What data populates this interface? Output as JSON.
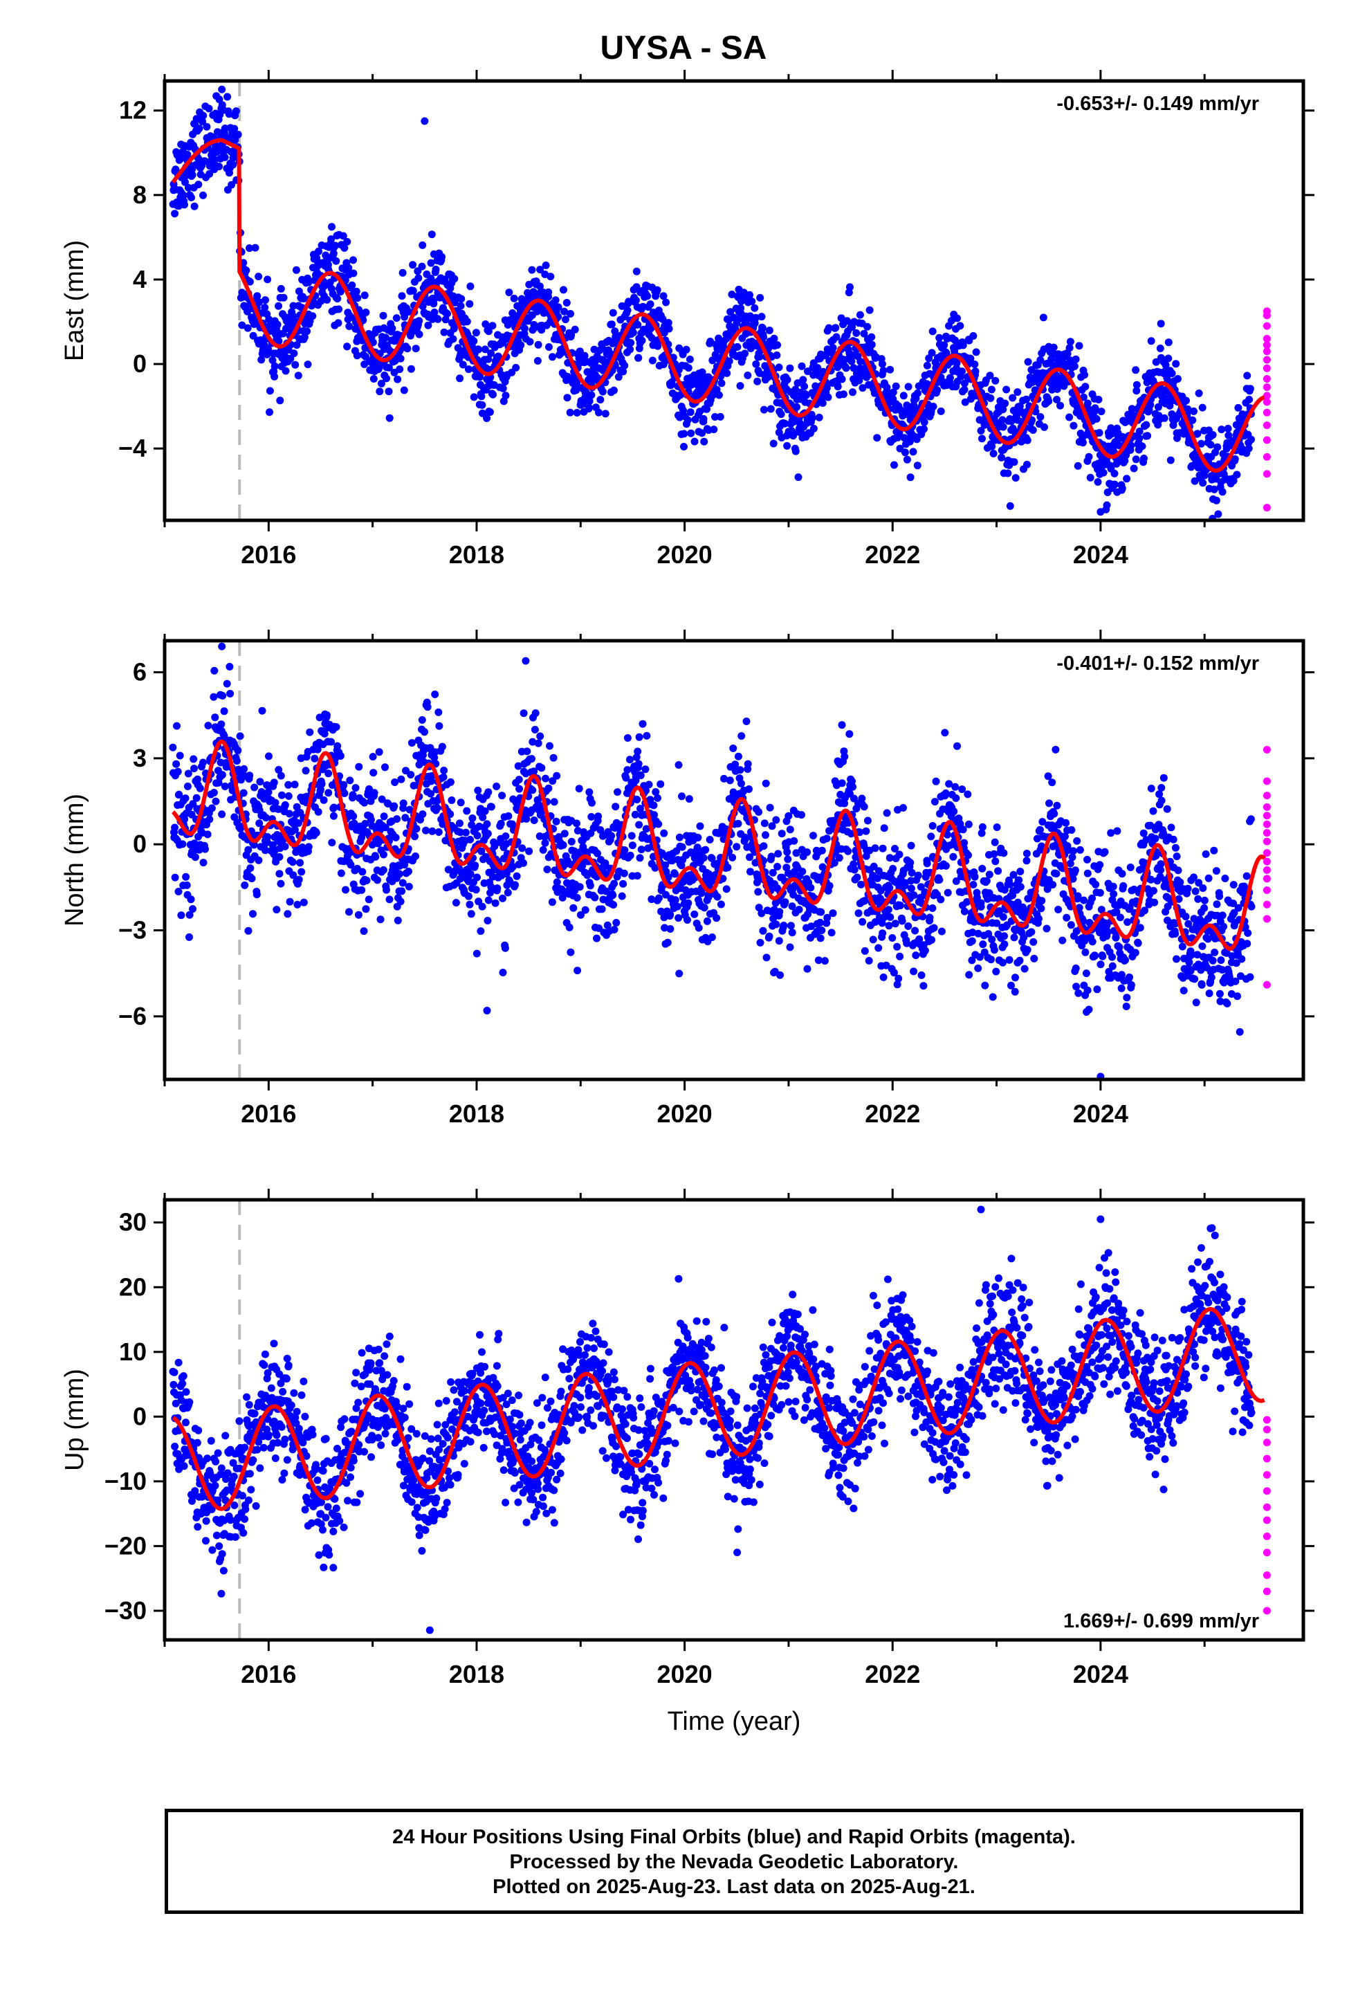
{
  "title": "UYSA - SA",
  "footer": {
    "line1": "24 Hour Positions Using Final Orbits (blue) and Rapid Orbits (magenta).",
    "line2": "Processed by the Nevada Geodetic Laboratory.",
    "line3": "Plotted on 2025-Aug-23. Last data on 2025-Aug-21."
  },
  "colors": {
    "final_orbits": "#0000ff",
    "rapid_orbits": "#ff00ff",
    "model_fit": "#ff0000",
    "event_line": "#bbbbbb"
  },
  "chart_data": [
    {
      "type": "scatter",
      "ylabel": "East (mm)",
      "xlabel": "",
      "xlim": [
        2015.0,
        2025.95
      ],
      "ylim": [
        -7.4,
        13.4
      ],
      "xticks": [
        2016,
        2018,
        2020,
        2022,
        2024
      ],
      "yticks": [
        12,
        8,
        4,
        0,
        -4
      ],
      "rate": "-0.653+/- 0.149 mm/yr",
      "rate_position": "top-right",
      "event_line_x": 2015.72,
      "fit": {
        "name": "model",
        "pre_event": {
          "x_start": 2015.08,
          "x_end": 2015.72,
          "start": 8.6,
          "end": 10.2,
          "peak": 10.6,
          "peak_x": 2015.55
        },
        "offset_after_event": -6.3,
        "linear_rate": -0.653,
        "annual_amplitude": 1.9,
        "annual_peak_phase": 0.6,
        "intercept_2016": 2.8,
        "x_end": 2025.58
      },
      "final_orbits": {
        "x_range": [
          2015.08,
          2025.45
        ],
        "noise": 1.0
      },
      "rapid_orbits": {
        "x": 2025.6,
        "y": [
          2.5,
          2.3,
          1.8,
          1.2,
          0.9,
          0.6,
          0.2,
          -0.2,
          -0.7,
          -1.1,
          -1.5,
          -1.8,
          -2.3,
          -2.9,
          -3.6,
          -4.4,
          -5.2,
          -6.8
        ]
      },
      "outliers": [
        [
          2017.5,
          11.5
        ],
        [
          2015.55,
          13.0
        ],
        [
          2024.0,
          -7.0
        ]
      ]
    },
    {
      "type": "scatter",
      "ylabel": "North (mm)",
      "xlabel": "",
      "xlim": [
        2015.0,
        2025.95
      ],
      "ylim": [
        -8.2,
        7.1
      ],
      "xticks": [
        2016,
        2018,
        2020,
        2022,
        2024
      ],
      "yticks": [
        6,
        3,
        0,
        -3,
        -6
      ],
      "rate": "-0.401+/- 0.152 mm/yr",
      "rate_position": "top-right",
      "event_line_x": 2015.72,
      "fit": {
        "name": "model",
        "linear_rate": -0.401,
        "annual_amplitude": 1.3,
        "annual_peak_phase": 0.55,
        "semiannual_amplitude": 0.9,
        "intercept_2016": 1.2,
        "x_end": 2025.58
      },
      "final_orbits": {
        "x_range": [
          2015.08,
          2025.45
        ],
        "noise": 1.2
      },
      "rapid_orbits": {
        "x": 2025.6,
        "y": [
          3.3,
          2.2,
          1.7,
          1.3,
          1.0,
          0.7,
          0.4,
          0.1,
          -0.3,
          -0.6,
          -0.9,
          -1.2,
          -1.6,
          -2.1,
          -2.6,
          -4.9
        ]
      },
      "outliers": [
        [
          2015.55,
          6.9
        ],
        [
          2018.1,
          -5.8
        ],
        [
          2024.0,
          -8.1
        ]
      ]
    },
    {
      "type": "scatter",
      "ylabel": "Up (mm)",
      "xlabel": "Time (year)",
      "xlim": [
        2015.0,
        2025.95
      ],
      "ylim": [
        -34.5,
        33.5
      ],
      "xticks": [
        2016,
        2018,
        2020,
        2022,
        2024
      ],
      "yticks": [
        30,
        20,
        10,
        0,
        -10,
        -20,
        -30
      ],
      "rate": "1.669+/- 0.699 mm/yr",
      "rate_position": "bottom-right",
      "event_line_x": 2015.72,
      "fit": {
        "name": "model",
        "linear_rate": 1.669,
        "annual_amplitude": 7.5,
        "annual_peak_phase": 0.05,
        "intercept_2016": -6.0,
        "x_end": 2025.58
      },
      "final_orbits": {
        "x_range": [
          2015.08,
          2025.45
        ],
        "noise": 4.5
      },
      "rapid_orbits": {
        "x": 2025.6,
        "y": [
          -0.5,
          -2.0,
          -4.0,
          -6.5,
          -9.0,
          -11.5,
          -14.0,
          -16.0,
          -18.5,
          -21.0,
          -24.5,
          -27.0,
          -30.0
        ]
      },
      "outliers": [
        [
          2022.85,
          32.0
        ],
        [
          2024.0,
          30.5
        ],
        [
          2025.1,
          28.0
        ],
        [
          2017.55,
          -33.0
        ]
      ]
    }
  ]
}
